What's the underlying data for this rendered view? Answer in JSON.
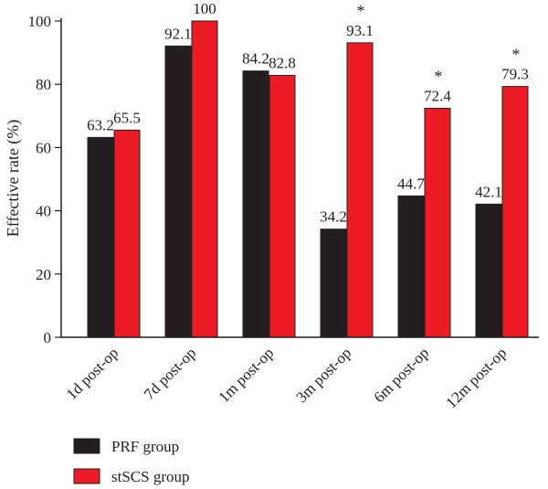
{
  "chart_data": {
    "type": "bar",
    "title": "",
    "xlabel": "",
    "ylabel": "Effective rate (%)",
    "ylim": [
      0,
      100
    ],
    "yticks": [
      0,
      20,
      40,
      60,
      80,
      100
    ],
    "grid": false,
    "legend_position": "bottom-left",
    "categories": [
      "1d post-op",
      "7d post-op",
      "1m post-op",
      "3m post-op",
      "6m post-op",
      "12m post-op"
    ],
    "series": [
      {
        "name": "PRF group",
        "color": "#231f20",
        "values": [
          63.2,
          92.1,
          84.2,
          34.2,
          44.7,
          42.1
        ],
        "labels": [
          "63.2",
          "92.1",
          "84.2",
          "34.2",
          "44.7",
          "42.1"
        ],
        "markers": [
          "",
          "",
          "",
          "",
          "",
          ""
        ]
      },
      {
        "name": "stSCS group",
        "color": "#ed1c24",
        "values": [
          65.5,
          100,
          82.8,
          93.1,
          72.4,
          79.3
        ],
        "labels": [
          "65.5",
          "100",
          "82.8",
          "93.1",
          "72.4",
          "79.3"
        ],
        "markers": [
          "",
          "",
          "",
          "*",
          "*",
          "*"
        ]
      }
    ]
  }
}
